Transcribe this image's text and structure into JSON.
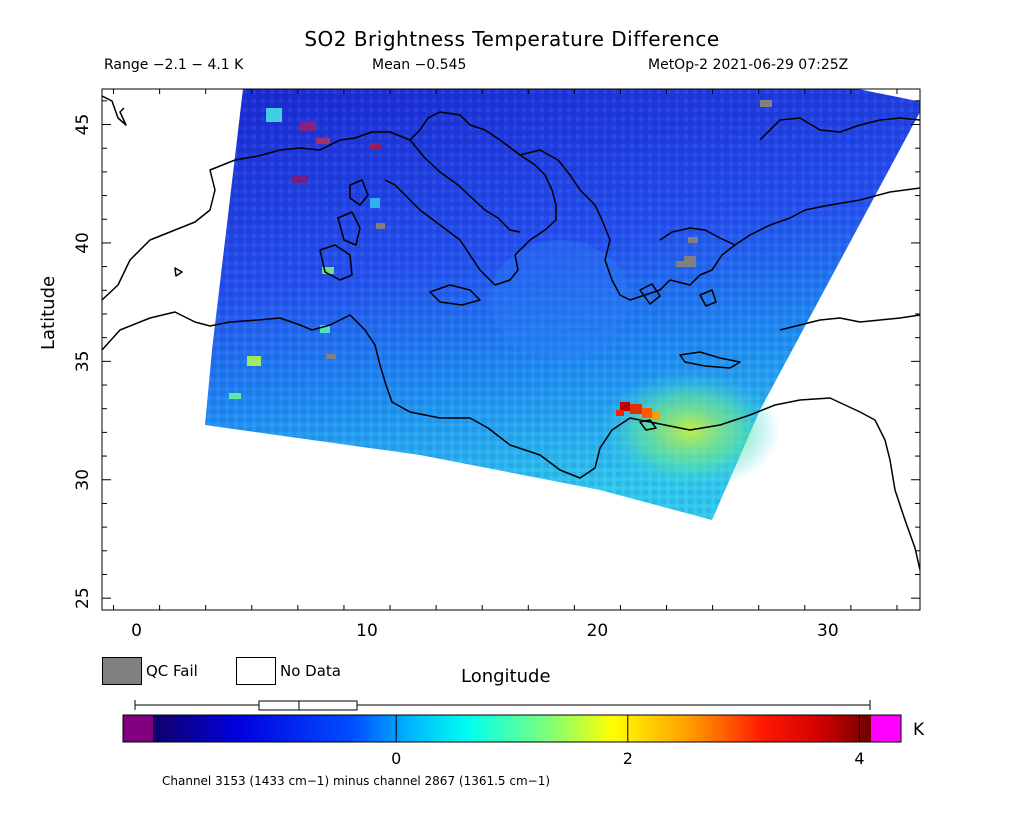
{
  "title": "SO2 Brightness Temperature Difference",
  "header": {
    "range": "Range −2.1 − 4.1 K",
    "mean": "Mean −0.545",
    "satellite": "MetOp-2 2021-06-29 07:25Z"
  },
  "axes": {
    "xlabel": "Longitude",
    "ylabel": "Latitude",
    "xlim": [
      -1.5,
      34
    ],
    "ylim": [
      24.5,
      46.5
    ],
    "xticks": [
      "0",
      "10",
      "20",
      "30"
    ],
    "yticks": [
      "25",
      "30",
      "35",
      "40",
      "45"
    ]
  },
  "legend": {
    "qc_fail": "QC Fail",
    "no_data": "No Data"
  },
  "colorbar": {
    "unit": "K",
    "ticks": [
      "0",
      "2",
      "4"
    ],
    "range": [
      -2.1,
      4.1
    ],
    "colors": [
      "#1a0080",
      "#0000ff",
      "#00ffff",
      "#ffff00",
      "#ff0000",
      "#800000"
    ],
    "underflow_color": "#800080",
    "overflow_color": "#ff00ff",
    "qc_fail_color": "#808080"
  },
  "footnote": "Channel 3153 (1433 cm−1) minus channel 2867 (1361.5 cm−1)"
}
